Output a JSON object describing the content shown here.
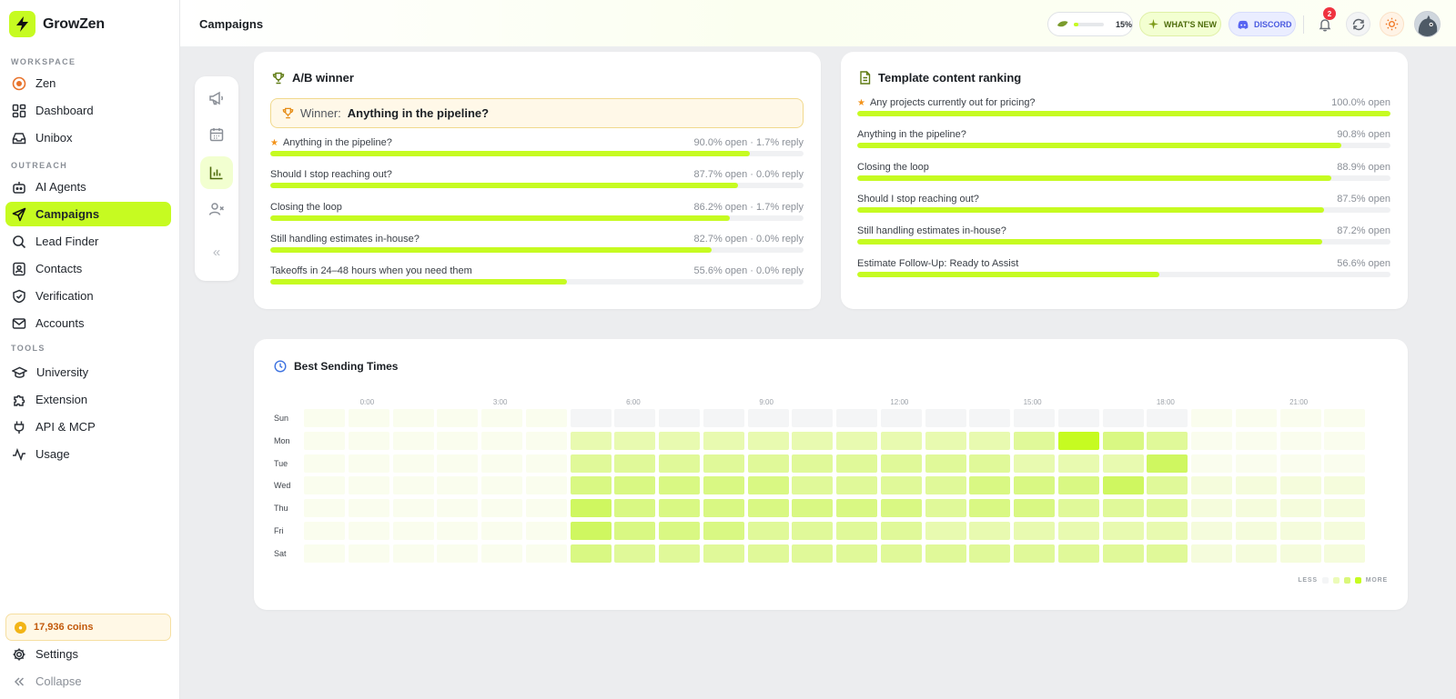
{
  "app": {
    "name": "GrowZen"
  },
  "sidebar": {
    "sections": [
      {
        "label": "WORKSPACE"
      },
      {
        "label": "OUTREACH"
      },
      {
        "label": "TOOLS"
      }
    ],
    "items": [
      {
        "label": "Zen",
        "icon": "zen-icon"
      },
      {
        "label": "Dashboard",
        "icon": "dashboard-icon"
      },
      {
        "label": "Unibox",
        "icon": "inbox-icon"
      },
      {
        "label": "AI Agents",
        "icon": "robot-icon"
      },
      {
        "label": "Campaigns",
        "icon": "send-icon",
        "active": true
      },
      {
        "label": "Lead Finder",
        "icon": "search-icon"
      },
      {
        "label": "Contacts",
        "icon": "contacts-icon"
      },
      {
        "label": "Verification",
        "icon": "shield-check-icon"
      },
      {
        "label": "Accounts",
        "icon": "mail-icon"
      },
      {
        "label": "University",
        "icon": "graduation-cap-icon"
      },
      {
        "label": "Extension",
        "icon": "puzzle-icon"
      },
      {
        "label": "API & MCP",
        "icon": "plug-icon"
      },
      {
        "label": "Usage",
        "icon": "activity-icon"
      }
    ],
    "coins_label": "17,936 coins",
    "settings_label": "Settings",
    "collapse_label": "Collapse"
  },
  "header": {
    "title": "Campaigns",
    "progress": {
      "value_label": "15%",
      "value": 0.15
    },
    "whats_new_label": "WHAT'S NEW",
    "discord_label": "DISCORD",
    "notification_count": "2"
  },
  "ab_winner": {
    "title": "A/B winner",
    "winner_prefix": "Winner:",
    "winner_name": "Anything in the pipeline?",
    "rows": [
      {
        "label": "Anything in the pipeline?",
        "metric": "90.0% open · 1.7% reply",
        "open": 90.0,
        "starred": true
      },
      {
        "label": "Should I stop reaching out?",
        "metric": "87.7% open · 0.0% reply",
        "open": 87.7
      },
      {
        "label": "Closing the loop",
        "metric": "86.2% open · 1.7% reply",
        "open": 86.2
      },
      {
        "label": "Still handling estimates in-house?",
        "metric": "82.7% open · 0.0% reply",
        "open": 82.7
      },
      {
        "label": "Takeoffs in 24–48 hours when you need them",
        "metric": "55.6% open · 0.0% reply",
        "open": 55.6
      }
    ]
  },
  "template_ranking": {
    "title": "Template content ranking",
    "rows": [
      {
        "label": "Any projects currently out for pricing?",
        "metric": "100.0% open",
        "open": 100.0,
        "starred": true
      },
      {
        "label": "Anything in the pipeline?",
        "metric": "90.8% open",
        "open": 90.8
      },
      {
        "label": "Closing the loop",
        "metric": "88.9% open",
        "open": 88.9
      },
      {
        "label": "Should I stop reaching out?",
        "metric": "87.5% open",
        "open": 87.5
      },
      {
        "label": "Still handling estimates in-house?",
        "metric": "87.2% open",
        "open": 87.2
      },
      {
        "label": "Estimate Follow-Up: Ready to Assist",
        "metric": "56.6% open",
        "open": 56.6
      }
    ]
  },
  "sending_times": {
    "title": "Best Sending Times",
    "hour_labels": [
      "0:00",
      "3:00",
      "6:00",
      "9:00",
      "12:00",
      "15:00",
      "18:00",
      "21:00"
    ],
    "days": [
      "Sun",
      "Mon",
      "Tue",
      "Wed",
      "Thu",
      "Fri",
      "Sat"
    ],
    "intensity": [
      [
        1,
        1,
        1,
        1,
        1,
        1,
        0,
        0,
        0,
        0,
        0,
        0,
        0,
        0,
        0,
        0,
        0,
        0,
        0,
        0,
        1,
        1,
        1,
        1
      ],
      [
        1,
        1,
        1,
        1,
        1,
        1,
        4,
        4,
        4,
        4,
        4,
        4,
        4,
        4,
        4,
        4,
        5,
        9,
        6,
        5,
        1,
        1,
        1,
        1
      ],
      [
        1,
        1,
        1,
        1,
        1,
        1,
        5,
        5,
        5,
        5,
        5,
        5,
        5,
        5,
        5,
        5,
        4,
        4,
        4,
        7,
        1,
        1,
        1,
        1
      ],
      [
        1,
        1,
        1,
        1,
        1,
        1,
        6,
        6,
        6,
        6,
        6,
        5,
        5,
        5,
        5,
        6,
        6,
        6,
        7,
        5,
        2,
        2,
        2,
        2
      ],
      [
        1,
        1,
        1,
        1,
        1,
        1,
        7,
        6,
        6,
        6,
        6,
        6,
        6,
        6,
        5,
        6,
        6,
        5,
        5,
        5,
        2,
        2,
        2,
        2
      ],
      [
        1,
        1,
        1,
        1,
        1,
        1,
        7,
        6,
        6,
        6,
        5,
        5,
        5,
        5,
        4,
        4,
        4,
        4,
        4,
        4,
        2,
        2,
        2,
        2
      ],
      [
        1,
        1,
        1,
        1,
        1,
        1,
        6,
        5,
        5,
        5,
        5,
        5,
        5,
        5,
        5,
        5,
        5,
        5,
        5,
        5,
        2,
        2,
        2,
        2
      ]
    ],
    "legend_less": "LESS",
    "legend_more": "MORE",
    "colors": {
      "empty": "#f4f5f6",
      "accent": "#c6fb21"
    }
  }
}
